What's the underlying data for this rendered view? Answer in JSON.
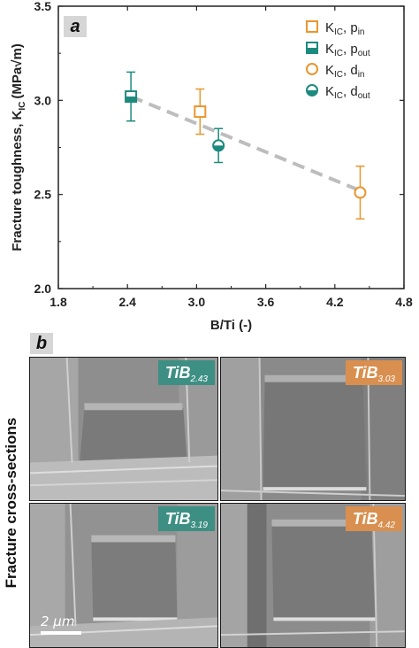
{
  "panel_a_label": "a",
  "panel_b_label": "b",
  "chart_data": {
    "type": "scatter",
    "xlabel": "B/Ti (-)",
    "ylabel": "Fracture toughness, K",
    "ylabel_sub": "IC",
    "ylabel_unit": "(MPa√m)",
    "xlim": [
      1.8,
      4.8
    ],
    "ylim": [
      2.0,
      3.5
    ],
    "xticks": [
      "1.8",
      "2.4",
      "3.0",
      "3.6",
      "4.2",
      "4.8"
    ],
    "yticks": [
      "2.0",
      "2.5",
      "3.0",
      "3.5"
    ],
    "series": [
      {
        "name": "K_IC, p_in",
        "label_main": "K",
        "label_sub1": "IC",
        "label_mid": ", p",
        "label_sub2": "in",
        "marker": "square-open",
        "color": "#e8962e",
        "points": [
          {
            "x": 3.03,
            "y": 2.94,
            "err": 0.12
          }
        ]
      },
      {
        "name": "K_IC, p_out",
        "label_main": "K",
        "label_sub1": "IC",
        "label_mid": ", p",
        "label_sub2": "out",
        "marker": "square-half",
        "color": "#1d8a7e",
        "points": [
          {
            "x": 2.43,
            "y": 3.02,
            "err": 0.13
          }
        ]
      },
      {
        "name": "K_IC, d_in",
        "label_main": "K",
        "label_sub1": "IC",
        "label_mid": ", d",
        "label_sub2": "in",
        "marker": "circle-open",
        "color": "#e8962e",
        "points": [
          {
            "x": 4.42,
            "y": 2.51,
            "err": 0.14
          }
        ]
      },
      {
        "name": "K_IC, d_out",
        "label_main": "K",
        "label_sub1": "IC",
        "label_mid": ", d",
        "label_sub2": "out",
        "marker": "circle-half",
        "color": "#1d8a7e",
        "points": [
          {
            "x": 3.19,
            "y": 2.76,
            "err": 0.09
          }
        ]
      }
    ],
    "trendline": {
      "x": [
        2.43,
        4.42
      ],
      "y": [
        3.02,
        2.52
      ],
      "style": "dashed",
      "color": "#bdbdbd"
    },
    "legend_position": "top-right",
    "grid": false
  },
  "cross_sections": {
    "side_label": "Fracture cross-sections",
    "scale_bar": "2 μm",
    "images": [
      {
        "name": "TiB2.43",
        "main": "TiB",
        "sub": "2.43",
        "tag_color": "#3d8f83"
      },
      {
        "name": "TiB3.03",
        "main": "TiB",
        "sub": "3.03",
        "tag_color": "#d98f4f"
      },
      {
        "name": "TiB3.19",
        "main": "TiB",
        "sub": "3.19",
        "tag_color": "#3d8f83"
      },
      {
        "name": "TiB4.42",
        "main": "TiB",
        "sub": "4.42",
        "tag_color": "#d98f4f"
      }
    ]
  }
}
